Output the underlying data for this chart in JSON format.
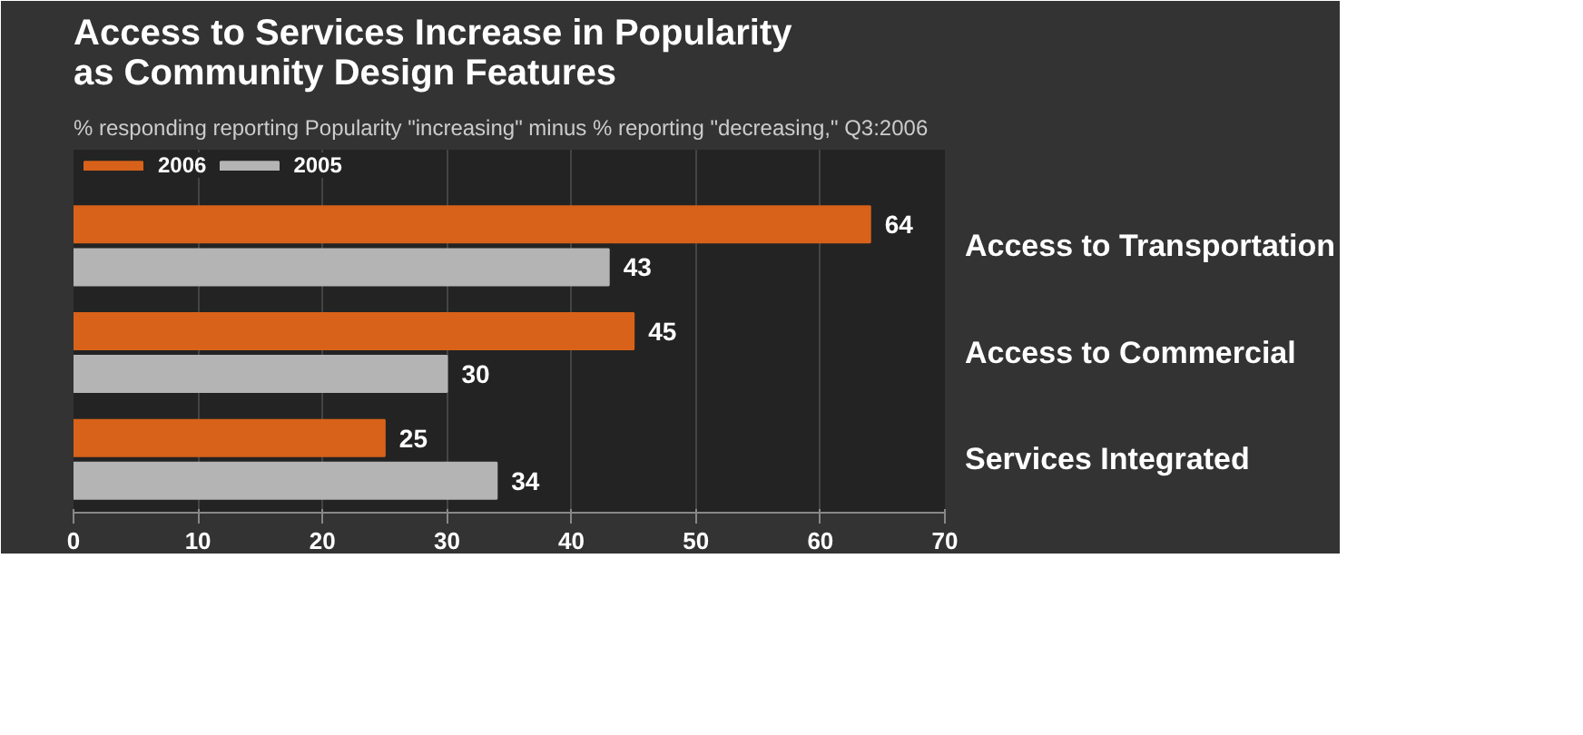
{
  "chart_data": {
    "type": "bar",
    "orientation": "horizontal",
    "title": "Access to Services Increase in Popularity\nas Community Design Features",
    "subtitle": "% responding reporting Popularity \"increasing\" minus % reporting \"decreasing,\" Q3:2006",
    "categories": [
      "Access to Transportation",
      "Access to Commercial",
      "Services Integrated"
    ],
    "series": [
      {
        "name": "2006",
        "color": "#d8621a",
        "values": [
          64,
          45,
          25
        ]
      },
      {
        "name": "2005",
        "color": "#b4b4b4",
        "values": [
          43,
          30,
          34
        ]
      }
    ],
    "xlim": [
      0,
      70
    ],
    "xticks": [
      0,
      10,
      20,
      30,
      40,
      50,
      60,
      70
    ],
    "grid": "x",
    "legend": "top left",
    "data_labels": true
  }
}
